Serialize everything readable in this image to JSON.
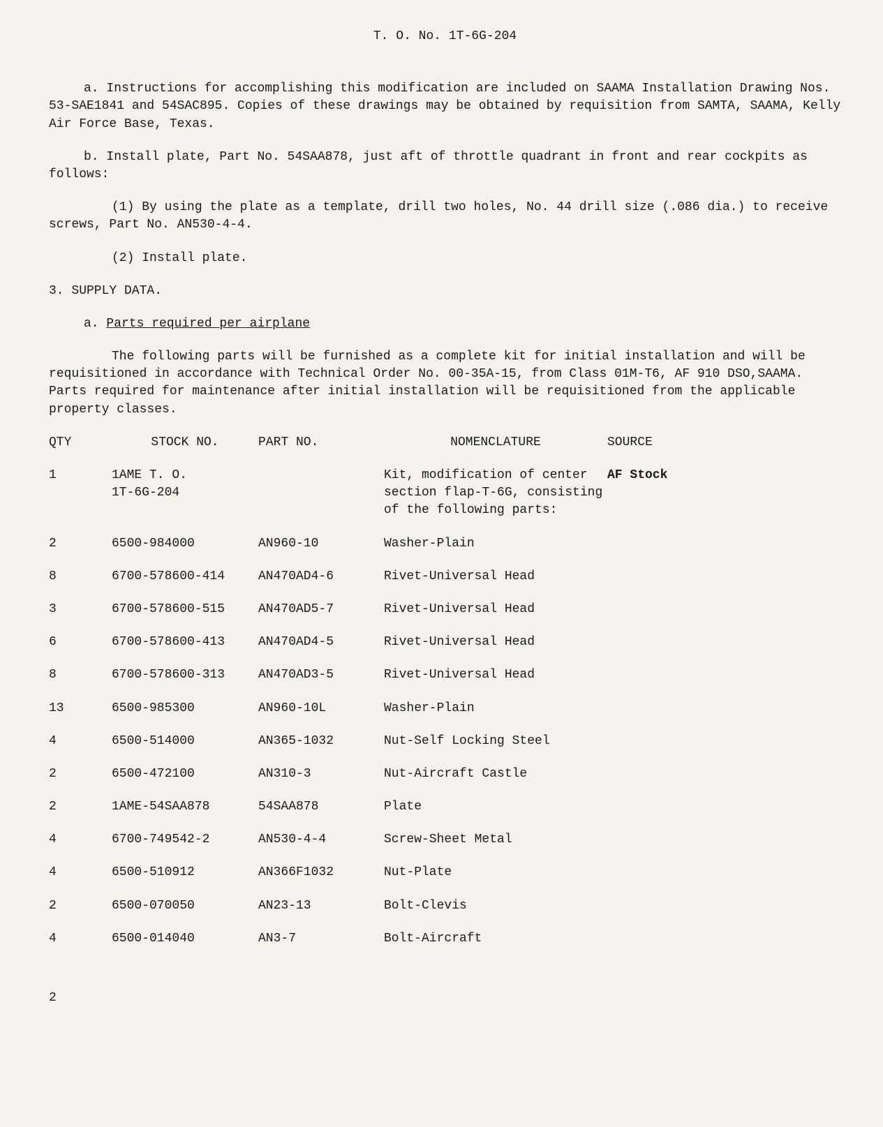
{
  "header": {
    "title": "T. O. No. 1T-6G-204"
  },
  "body": {
    "para_a": "a.  Instructions for accomplishing this modification are included on SAAMA Installation Drawing Nos. 53-SAE1841 and 54SAC895.  Copies of these drawings may be obtained by requisition from SAMTA, SAAMA, Kelly Air Force Base, Texas.",
    "para_b": "b.  Install plate, Part No. 54SAA878, just aft of throttle quadrant in front and rear cockpits as follows:",
    "para_b1": "(1)  By using the plate as a template, drill two holes, No. 44 drill size (.086 dia.) to receive screws, Part No. AN530-4-4.",
    "para_b2": "(2)  Install plate.",
    "section_3": "3.  SUPPLY DATA.",
    "section_3a_prefix": "a.  ",
    "section_3a_text": "Parts required per airplane",
    "para_3a_desc": "The following parts will be furnished as a complete kit for initial installation and will be requisitioned in accordance with Technical Order No. 00-35A-15, from Class 01M-T6, AF 910 DSO,SAAMA.  Parts required for maintenance after initial installation will be requisitioned from the applicable property classes."
  },
  "table": {
    "headers": {
      "qty": "QTY",
      "stock": "STOCK NO.",
      "part": "PART NO.",
      "nomen": "NOMENCLATURE",
      "source": "SOURCE"
    },
    "rows": [
      {
        "qty": "1",
        "stock": "1AME T. O.\n1T-6G-204",
        "part": "",
        "nomen": "Kit, modification of center section flap-T-6G, consisting of the following parts:",
        "source": "AF Stock"
      },
      {
        "qty": "2",
        "stock": "6500-984000",
        "part": "AN960-10",
        "nomen": "Washer-Plain",
        "source": ""
      },
      {
        "qty": "8",
        "stock": "6700-578600-414",
        "part": "AN470AD4-6",
        "nomen": "Rivet-Universal Head",
        "source": ""
      },
      {
        "qty": "3",
        "stock": "6700-578600-515",
        "part": "AN470AD5-7",
        "nomen": "Rivet-Universal Head",
        "source": ""
      },
      {
        "qty": "6",
        "stock": "6700-578600-413",
        "part": "AN470AD4-5",
        "nomen": "Rivet-Universal Head",
        "source": ""
      },
      {
        "qty": "8",
        "stock": "6700-578600-313",
        "part": "AN470AD3-5",
        "nomen": "Rivet-Universal Head",
        "source": ""
      },
      {
        "qty": "13",
        "stock": "6500-985300",
        "part": "AN960-10L",
        "nomen": "Washer-Plain",
        "source": ""
      },
      {
        "qty": "4",
        "stock": "6500-514000",
        "part": "AN365-1032",
        "nomen": "Nut-Self Locking Steel",
        "source": ""
      },
      {
        "qty": "2",
        "stock": "6500-472100",
        "part": "AN310-3",
        "nomen": "Nut-Aircraft Castle",
        "source": ""
      },
      {
        "qty": "2",
        "stock": "1AME-54SAA878",
        "part": "54SAA878",
        "nomen": "Plate",
        "source": ""
      },
      {
        "qty": "4",
        "stock": "6700-749542-2",
        "part": "AN530-4-4",
        "nomen": "Screw-Sheet Metal",
        "source": ""
      },
      {
        "qty": "4",
        "stock": "6500-510912",
        "part": "AN366F1032",
        "nomen": "Nut-Plate",
        "source": ""
      },
      {
        "qty": "2",
        "stock": "6500-070050",
        "part": "AN23-13",
        "nomen": "Bolt-Clevis",
        "source": ""
      },
      {
        "qty": "4",
        "stock": "6500-014040",
        "part": "AN3-7",
        "nomen": "Bolt-Aircraft",
        "source": ""
      }
    ]
  },
  "page_number": "2",
  "styling": {
    "background_color": "#f5f2ed",
    "text_color": "#1a1a1a",
    "font_family": "Courier New",
    "font_size_pt": 14
  }
}
